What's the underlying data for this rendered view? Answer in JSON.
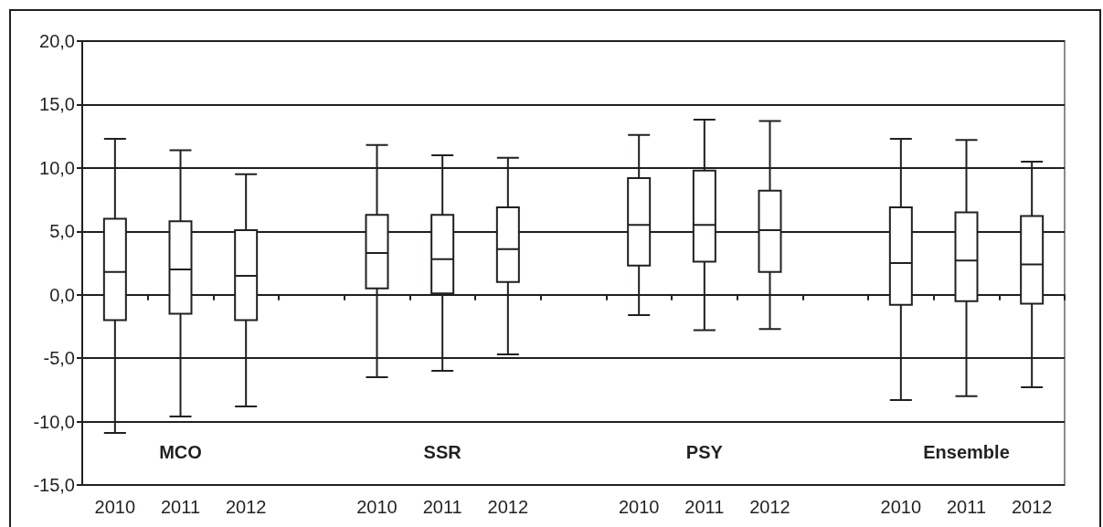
{
  "chart_data": {
    "type": "box",
    "categories": [
      "2010",
      "2011",
      "2012",
      null,
      "2010",
      "2011",
      "2012",
      null,
      "2010",
      "2011",
      "2012",
      null,
      "2010",
      "2011",
      "2012"
    ],
    "boxes": [
      {
        "low": -10.9,
        "q1": -2.0,
        "median": 1.8,
        "q3": 6.0,
        "high": 12.3
      },
      {
        "low": -9.6,
        "q1": -1.5,
        "median": 2.0,
        "q3": 5.8,
        "high": 11.4
      },
      {
        "low": -8.8,
        "q1": -2.0,
        "median": 1.5,
        "q3": 5.1,
        "high": 9.5
      },
      null,
      {
        "low": -6.5,
        "q1": 0.5,
        "median": 3.3,
        "q3": 6.3,
        "high": 11.8
      },
      {
        "low": -6.0,
        "q1": 0.1,
        "median": 2.8,
        "q3": 6.3,
        "high": 11.0
      },
      {
        "low": -4.7,
        "q1": 1.0,
        "median": 3.6,
        "q3": 6.9,
        "high": 10.8
      },
      null,
      {
        "low": -1.6,
        "q1": 2.3,
        "median": 5.5,
        "q3": 9.2,
        "high": 12.6
      },
      {
        "low": -2.8,
        "q1": 2.6,
        "median": 5.5,
        "q3": 9.8,
        "high": 13.8
      },
      {
        "low": -2.7,
        "q1": 1.8,
        "median": 5.1,
        "q3": 8.2,
        "high": 13.7
      },
      null,
      {
        "low": -8.3,
        "q1": -0.8,
        "median": 2.5,
        "q3": 6.9,
        "high": 12.3
      },
      {
        "low": -8.0,
        "q1": -0.5,
        "median": 2.7,
        "q3": 6.5,
        "high": 12.2
      },
      {
        "low": -7.3,
        "q1": -0.7,
        "median": 2.4,
        "q3": 6.2,
        "high": 10.5
      }
    ],
    "color": "#231f20",
    "ylim": [
      -15,
      20
    ],
    "yticks": [
      {
        "value": -15,
        "label": "-15,0"
      },
      {
        "value": -10,
        "label": "-10,0"
      },
      {
        "value": -5,
        "label": "-5,0"
      },
      {
        "value": 0,
        "label": "0,0"
      },
      {
        "value": 5,
        "label": "5,0"
      },
      {
        "value": 10,
        "label": "10,0"
      },
      {
        "value": 15,
        "label": "15,0"
      },
      {
        "value": 20,
        "label": "20,0"
      }
    ],
    "grid": "y",
    "annotations": [
      "MCO",
      "SSR",
      "PSY",
      "Ensemble"
    ]
  }
}
